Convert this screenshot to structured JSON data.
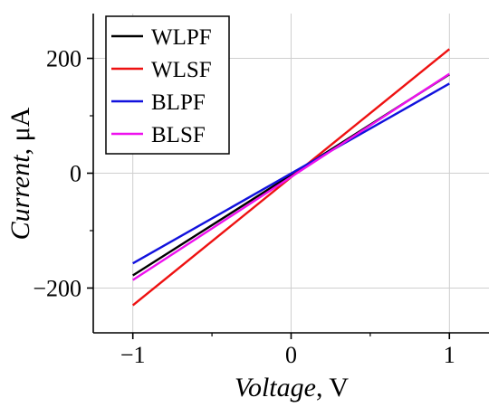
{
  "chart_data": {
    "type": "line",
    "xlabel": {
      "italic": "Voltage",
      "unit": ", V"
    },
    "ylabel": {
      "italic": "Current",
      "unit": ", μA"
    },
    "xlim": [
      -1.25,
      1.25
    ],
    "ylim": [
      -278,
      278
    ],
    "x_ticks": [
      -1,
      0,
      1
    ],
    "x_tick_labels": [
      "−1",
      "0",
      "1"
    ],
    "y_ticks": [
      -200,
      0,
      200
    ],
    "y_tick_labels": [
      "−200",
      "0",
      "200"
    ],
    "grid": true,
    "legend_position": "top-left",
    "x": [
      -1,
      1
    ],
    "series": [
      {
        "name": "WLPF",
        "color": "#000000",
        "values": [
          -178,
          172
        ]
      },
      {
        "name": "WLSF",
        "color": "#ee1111",
        "values": [
          -230,
          216
        ]
      },
      {
        "name": "BLPF",
        "color": "#1111dd",
        "values": [
          -157,
          156
        ]
      },
      {
        "name": "BLSF",
        "color": "#ee11ee",
        "values": [
          -186,
          173
        ]
      }
    ]
  }
}
